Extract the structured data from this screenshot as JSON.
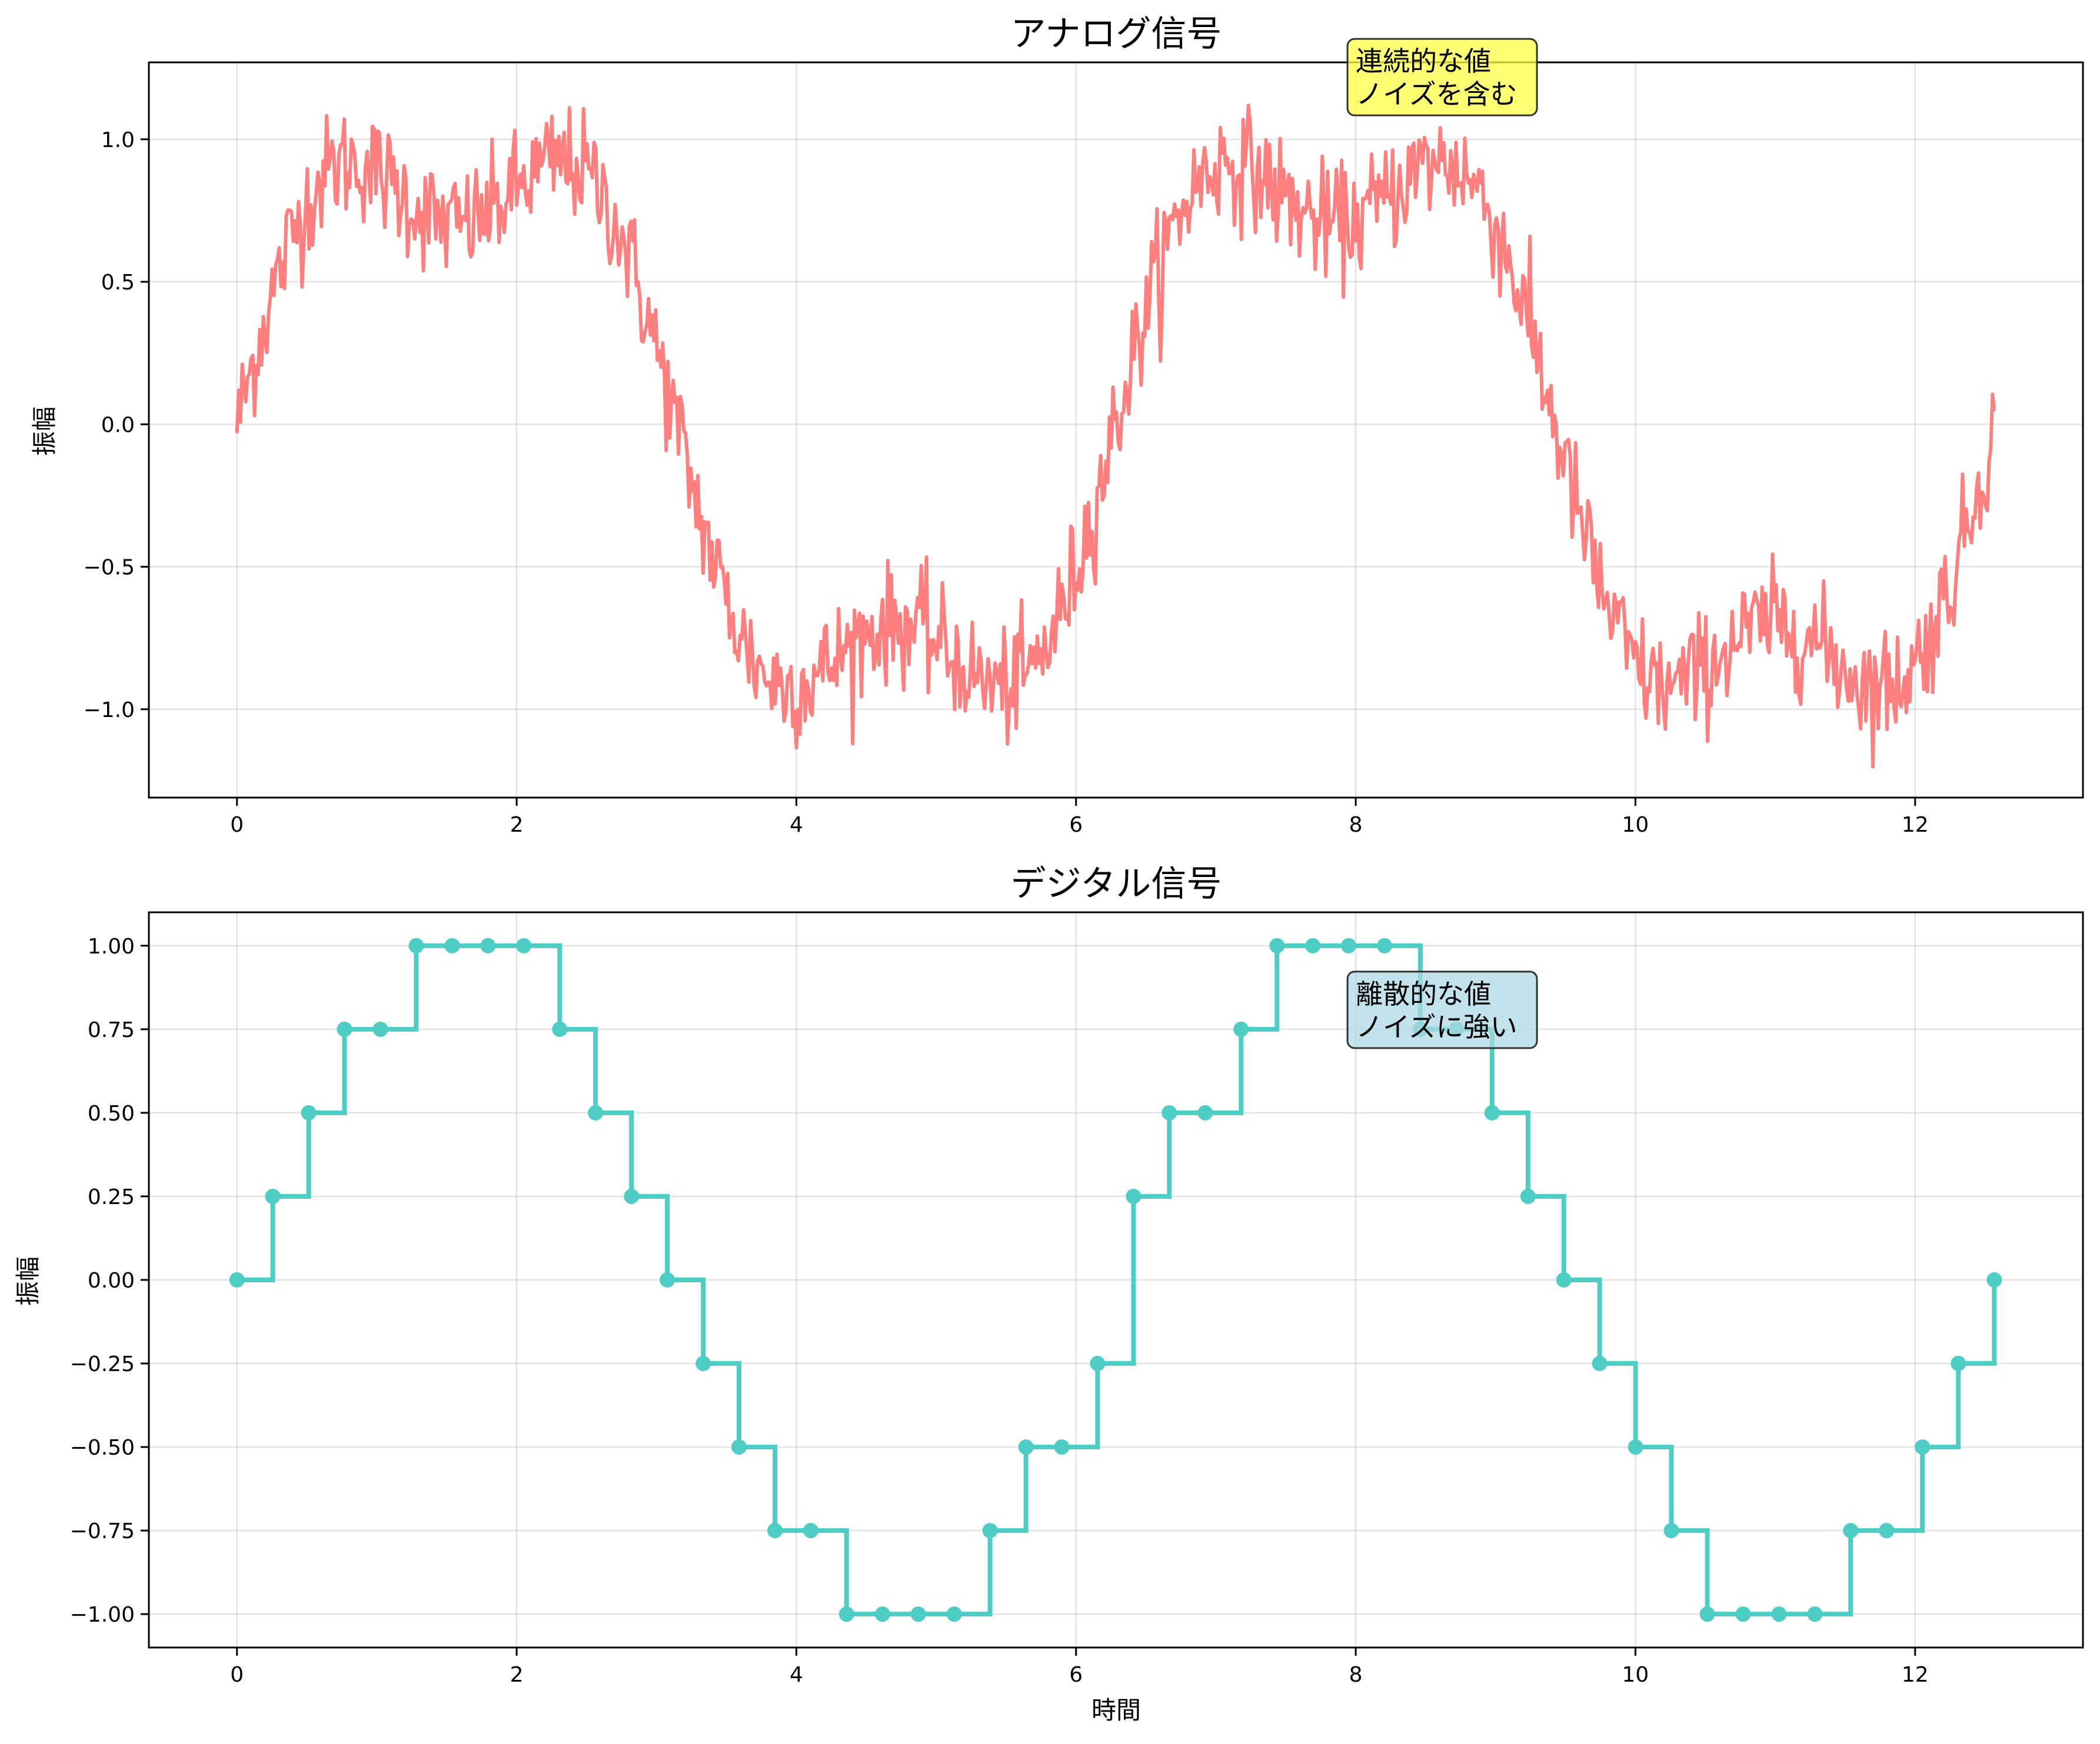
{
  "chart_data": [
    {
      "type": "line",
      "title": "アナログ信号",
      "xlabel": "",
      "ylabel": "振幅",
      "xlim": [
        -0.63,
        13.2
      ],
      "ylim": [
        -1.31,
        1.27
      ],
      "xticks": [
        0,
        2,
        4,
        6,
        8,
        10,
        12
      ],
      "xtick_labels": [
        "0",
        "2",
        "4",
        "6",
        "8",
        "10",
        "12"
      ],
      "yticks": [
        -1.0,
        -0.5,
        0.0,
        0.5,
        1.0
      ],
      "ytick_labels": [
        "−1.0",
        "−0.5",
        "0.0",
        "0.5",
        "1.0"
      ],
      "grid": true,
      "series": [
        {
          "color": "#ff7f7f",
          "x_range": [
            0,
            12.566
          ],
          "points": 1000,
          "description_values": "sin(x) + 0.3*sin(3x) with random noise",
          "x": [
            0,
            0.5,
            1.0,
            1.5,
            2.0,
            2.5,
            3.0,
            3.5,
            4.0,
            4.5,
            5.0,
            5.5,
            6.0,
            6.5,
            7.0,
            7.5,
            8.0,
            8.5,
            9.0,
            9.5,
            10.0,
            10.5,
            11.0,
            11.5,
            12.0,
            12.5
          ],
          "y": [
            0.0,
            0.78,
            0.93,
            0.71,
            0.82,
            0.88,
            0.18,
            -0.62,
            -0.99,
            -0.76,
            -0.69,
            -0.91,
            -0.47,
            0.38,
            0.93,
            0.83,
            0.72,
            0.91,
            0.53,
            -0.23,
            -0.86,
            -0.91,
            -0.76,
            -0.86,
            -0.71,
            -0.12
          ]
        }
      ],
      "annotation": {
        "lines": [
          "連続的な値",
          "ノイズを含む"
        ],
        "x": 8.0,
        "y": 1.15,
        "bg": "#ffff44"
      }
    },
    {
      "type": "line",
      "title": "デジタル信号",
      "xlabel": "時間",
      "ylabel": "振幅",
      "xlim": [
        -0.63,
        13.2
      ],
      "ylim": [
        -1.1,
        1.1
      ],
      "xticks": [
        0,
        2,
        4,
        6,
        8,
        10,
        12
      ],
      "xtick_labels": [
        "0",
        "2",
        "4",
        "6",
        "8",
        "10",
        "12"
      ],
      "yticks": [
        -1.0,
        -0.75,
        -0.5,
        -0.25,
        0.0,
        0.25,
        0.5,
        0.75,
        1.0
      ],
      "ytick_labels": [
        "−1.00",
        "−0.75",
        "−0.50",
        "−0.25",
        "0.00",
        "0.25",
        "0.50",
        "0.75",
        "1.00"
      ],
      "grid": true,
      "series": [
        {
          "color": "#4ecdc4",
          "step": "post",
          "x": [
            0,
            0.256,
            0.513,
            0.769,
            1.026,
            1.282,
            1.539,
            1.795,
            2.051,
            2.308,
            2.564,
            2.821,
            3.077,
            3.334,
            3.59,
            3.847,
            4.103,
            4.359,
            4.616,
            4.872,
            5.129,
            5.385,
            5.642,
            5.898,
            6.154,
            6.411,
            6.667,
            6.924,
            7.18,
            7.437,
            7.693,
            7.949,
            8.206,
            8.462,
            8.719,
            8.975,
            9.232,
            9.488,
            9.744,
            10.001,
            10.257,
            10.514,
            10.77,
            11.027,
            11.283,
            11.539,
            11.796,
            12.052,
            12.309,
            12.566
          ],
          "y": [
            0,
            0.25,
            0.5,
            0.75,
            0.75,
            1,
            1,
            1,
            1,
            0.75,
            0.5,
            0.25,
            0,
            -0.25,
            -0.5,
            -0.75,
            -0.75,
            -1,
            -1,
            -1,
            -1,
            -0.75,
            -0.5,
            -0.5,
            -0.25,
            0.25,
            0.5,
            0.5,
            0.75,
            1,
            1,
            1,
            1,
            0.75,
            0.75,
            0.5,
            0.25,
            0,
            -0.25,
            -0.5,
            -0.75,
            -1,
            -1,
            -1,
            -1,
            -0.75,
            -0.75,
            -0.5,
            -0.25,
            0
          ]
        }
      ],
      "annotation": {
        "lines": [
          "離散的な値",
          "ノイズに強い"
        ],
        "x": 8.0,
        "y": 0.75,
        "bg": "#add8e6"
      }
    }
  ]
}
